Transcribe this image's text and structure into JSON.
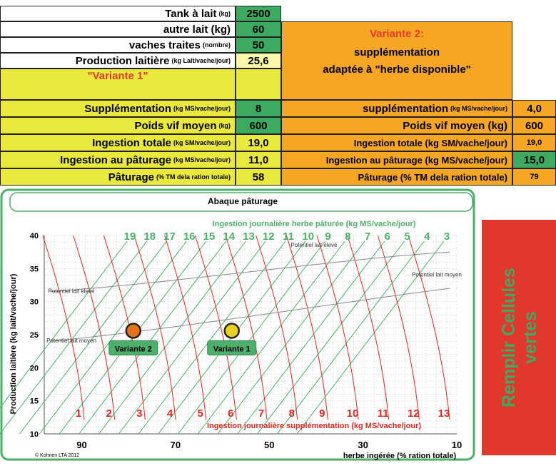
{
  "v1": {
    "tank": {
      "label": "Tank à lait",
      "unit": "(kg)",
      "value": "2500"
    },
    "autre": {
      "label": "autre lait (kg)",
      "unit": "",
      "value": "60"
    },
    "vaches": {
      "label": "vaches traites",
      "unit": "(nombre)",
      "value": "50"
    },
    "production": {
      "label": "Production laitière",
      "unit": "(kg Lait/vache/jour)",
      "value": "25,6"
    },
    "title": "\"Variante 1\"",
    "supplementation": {
      "label": "Supplémentation",
      "unit": "(kg MS/vache/jour)",
      "value": "8"
    },
    "poids": {
      "label": "Poids vif moyen",
      "unit": "(kg)",
      "value": "600"
    },
    "ingestion_totale": {
      "label": "Ingestion totale",
      "unit": "(kg SM/vache/jour)",
      "value": "19,0"
    },
    "ingestion_paturage": {
      "label": "Ingestion au pâturage",
      "unit": "(kg MS/vache/jour)",
      "value": "11,0"
    },
    "paturage": {
      "label": "Pâturage",
      "unit": "(% TM dela ration totale)",
      "value": "58"
    }
  },
  "v2": {
    "title": "Variante 2:",
    "line2": "supplémentation",
    "line3": "adaptée à \"herbe disponible\"",
    "supplementation": {
      "label": "supplémentation",
      "unit": "(kg MS/vache/jour)",
      "value": "4,0"
    },
    "poids": {
      "label": "Poids vif moyen (kg)",
      "unit": "",
      "value": "600"
    },
    "ingestion_totale": {
      "label": "Ingestion totale (kg SM/vache/jour)",
      "unit": "",
      "value": "19,0"
    },
    "ingestion_paturage": {
      "label": "Ingestion au pâturage (kg MS/vache/jour)",
      "unit": "",
      "value": "15,0"
    },
    "paturage": {
      "label": "Pâturage (% TM dela ration totale)",
      "unit": "",
      "value": "79"
    }
  },
  "side_panel": {
    "line1": "Remplir Cellules",
    "line2": "vertes"
  },
  "chart_data": {
    "type": "scatter",
    "title": "Abaque pâturage",
    "top_axis_label": "Ingestion journalière herbe pâturée (kg MS/vache/jour)",
    "top_axis_ticks": [
      "19",
      "18",
      "17",
      "16",
      "15",
      "14",
      "13",
      "12",
      "11",
      "10",
      "9",
      "8",
      "7",
      "6",
      "5",
      "4",
      "3"
    ],
    "bottom_inner_label": "Ingestion journalière supplémentation (kg MS/vache/jour)",
    "bottom_inner_ticks": [
      "1",
      "2",
      "3",
      "4",
      "5",
      "6",
      "7",
      "8",
      "9",
      "10",
      "11",
      "12",
      "13"
    ],
    "xlabel": "herbe ingérée (% ration totale)",
    "xticks": [
      "90",
      "70",
      "50",
      "30",
      "10"
    ],
    "xlim": [
      98,
      10
    ],
    "ylabel": "Production laitière (kg lait/vache/jour)",
    "yticks": [
      "10",
      "15",
      "20",
      "25",
      "30",
      "35",
      "40"
    ],
    "ylim": [
      10,
      40
    ],
    "annotations": [
      "Potentiel lait élevé",
      "Potentiel lait moyen",
      "Potentiel lait élevé",
      "Potentiel lait moyen"
    ],
    "points": [
      {
        "name": "Variante 2",
        "x": 79,
        "y": 25.6,
        "color": "#e8711c"
      },
      {
        "name": "Variante 1",
        "x": 58,
        "y": 25.6,
        "color": "#e8d21c"
      }
    ],
    "copyright": "© Kohnen LTA 2012"
  },
  "colors": {
    "green": "#3daa62",
    "yellow": "#e9e93c",
    "orange": "#f6a623",
    "red": "#e3362c",
    "chart_green": "#4caf6a",
    "chart_red": "#e0281e"
  }
}
